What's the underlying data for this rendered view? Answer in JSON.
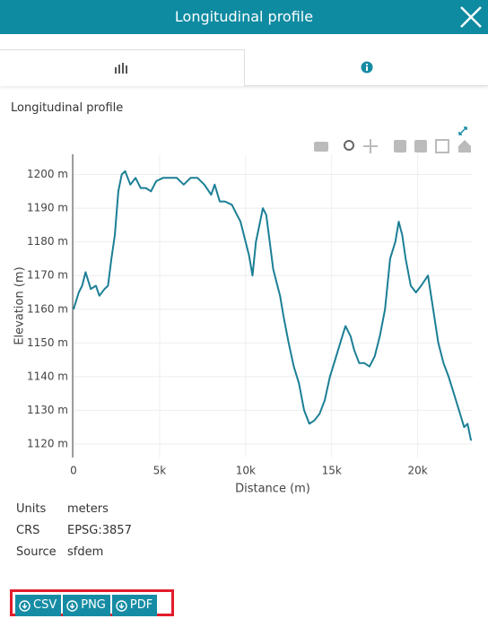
{
  "header": {
    "title": "Longitudinal profile"
  },
  "section_title": "Longitudinal profile",
  "chart_data": {
    "type": "line",
    "color": "#1b7f95",
    "x_label": "Distance (m)",
    "y_label": "Elevation (m)",
    "x": [
      0,
      300,
      500,
      700,
      1000,
      1300,
      1500,
      1800,
      2000,
      2200,
      2400,
      2600,
      2800,
      3000,
      3300,
      3600,
      3900,
      4200,
      4500,
      4800,
      5200,
      5600,
      6000,
      6400,
      6800,
      7200,
      7600,
      8000,
      8200,
      8500,
      8800,
      9200,
      9500,
      9700,
      10000,
      10200,
      10400,
      10600,
      10800,
      11000,
      11200,
      11400,
      11600,
      11800,
      12000,
      12200,
      12500,
      12800,
      13100,
      13400,
      13700,
      14000,
      14300,
      14600,
      14900,
      15200,
      15500,
      15800,
      16100,
      16300,
      16600,
      16900,
      17200,
      17500,
      17800,
      18100,
      18400,
      18700,
      18900,
      19100,
      19300,
      19600,
      19900,
      20200,
      20600,
      20900,
      21200,
      21500,
      21800,
      22100,
      22400,
      22700,
      22900,
      23100
    ],
    "values": [
      1160,
      1165,
      1167,
      1171,
      1166,
      1167,
      1164,
      1166,
      1167,
      1175,
      1182,
      1195,
      1200,
      1201,
      1197,
      1199,
      1196,
      1196,
      1195,
      1198,
      1199,
      1199,
      1199,
      1197,
      1199,
      1199,
      1197,
      1194,
      1197,
      1192,
      1192,
      1191,
      1188,
      1186,
      1180,
      1176,
      1170,
      1180,
      1185,
      1190,
      1188,
      1180,
      1172,
      1168,
      1164,
      1158,
      1150,
      1143,
      1138,
      1130,
      1126,
      1127,
      1129,
      1133,
      1140,
      1145,
      1150,
      1155,
      1152,
      1148,
      1144,
      1144,
      1143,
      1146,
      1152,
      1160,
      1175,
      1180,
      1186,
      1182,
      1175,
      1167,
      1165,
      1167,
      1170,
      1160,
      1150,
      1144,
      1140,
      1135,
      1130,
      1125,
      1126,
      1121
    ],
    "xlim": [
      0,
      23200
    ],
    "xticks": [
      0,
      {
        "value": 5000,
        "label": "5k"
      },
      {
        "value": 10000,
        "label": "10k"
      },
      {
        "value": 15000,
        "label": "15k"
      },
      {
        "value": 20000,
        "label": "20k"
      }
    ],
    "ylim": [
      1116,
      1206
    ],
    "yticks": [
      {
        "value": 1120,
        "label": "1120 m"
      },
      {
        "value": 1130,
        "label": "1130 m"
      },
      {
        "value": 1140,
        "label": "1140 m"
      },
      {
        "value": 1150,
        "label": "1150 m"
      },
      {
        "value": 1160,
        "label": "1160 m"
      },
      {
        "value": 1170,
        "label": "1170 m"
      },
      {
        "value": 1180,
        "label": "1180 m"
      },
      {
        "value": 1190,
        "label": "1190 m"
      },
      {
        "value": 1200,
        "label": "1200 m"
      }
    ],
    "grid": true
  },
  "info": [
    {
      "label": "Units",
      "value": "meters"
    },
    {
      "label": "CRS",
      "value": "EPSG:3857"
    },
    {
      "label": "Source",
      "value": "sfdem"
    }
  ],
  "buttons": [
    "CSV",
    "PNG",
    "PDF"
  ]
}
